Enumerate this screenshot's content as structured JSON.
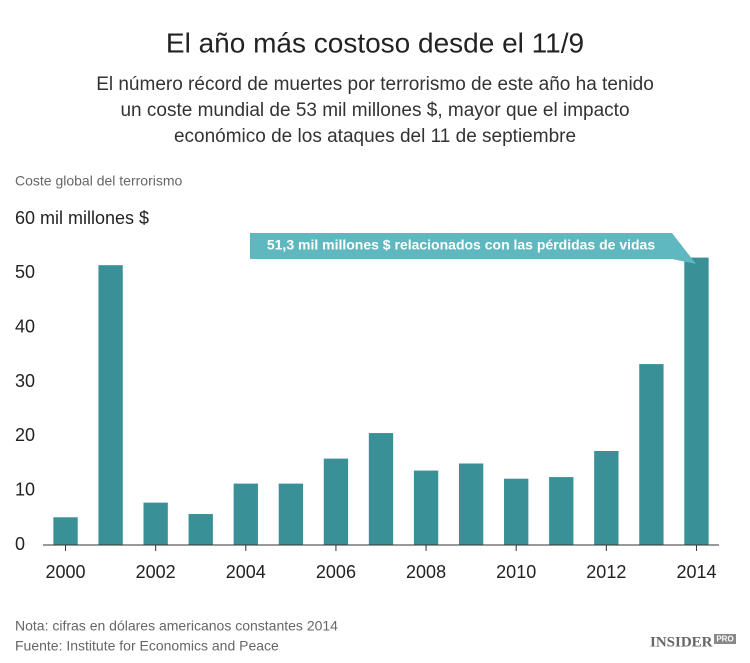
{
  "chart_data": {
    "type": "bar",
    "title": "El año más costoso desde el 11/9",
    "subtitle": [
      "El número récord de muertes por terrorismo de este año ha tenido",
      "un coste mundial de 53 mil millones $, mayor que el impacto",
      "económico de los ataques del 11 de septiembre"
    ],
    "y_label": "Coste global del terrorismo",
    "x": [
      2000,
      2001,
      2002,
      2003,
      2004,
      2005,
      2006,
      2007,
      2008,
      2009,
      2010,
      2011,
      2012,
      2013,
      2014
    ],
    "values": [
      5.1,
      51.5,
      7.8,
      5.7,
      11.3,
      11.3,
      15.9,
      20.6,
      13.7,
      15.0,
      12.2,
      12.5,
      17.3,
      33.3,
      52.9
    ],
    "color": "#3a9097",
    "xlim": [
      1999.5,
      2014.5
    ],
    "xticks": [
      2000,
      2002,
      2004,
      2006,
      2008,
      2010,
      2012,
      2014
    ],
    "ylim": [
      0,
      60
    ],
    "yticks": [
      0,
      10,
      20,
      30,
      40,
      50,
      {
        "value": 60,
        "label": "60 mil millones $"
      }
    ],
    "grid": false,
    "annotation": "51,3 mil millones $ relacionados con las pérdidas de vidas",
    "notes": [
      "Nota: cifras en dólares americanos constantes 2014",
      "Fuente: Institute for Economics and Peace"
    ],
    "logo": "INSIDER",
    "logo_badge": "PRO"
  }
}
